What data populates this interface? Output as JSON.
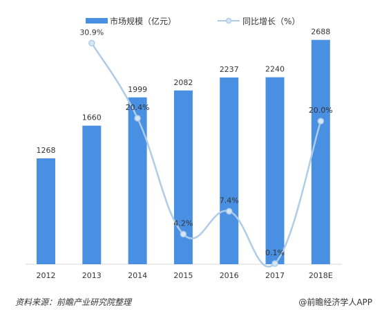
{
  "colors": {
    "bar": "#4a90e2",
    "line": "#aecbe8",
    "text": "#333333",
    "axis": "#d9d9d9"
  },
  "legend": {
    "bar_label": "市场规模（亿元）",
    "line_label": "同比增长（%）"
  },
  "footer": {
    "source": "资料来源：前瞻产业研究院整理",
    "credit": "@前瞻经济学人APP"
  },
  "chart_data": {
    "type": "bar",
    "categories": [
      "2012",
      "2013",
      "2014",
      "2015",
      "2016",
      "2017",
      "2018E"
    ],
    "series": [
      {
        "name": "市场规模（亿元）",
        "type": "bar",
        "values": [
          1268,
          1660,
          1999,
          2082,
          2237,
          2240,
          2688
        ],
        "labels": [
          "1268",
          "1660",
          "1999",
          "2082",
          "2237",
          "2240",
          "2688"
        ]
      },
      {
        "name": "同比增长（%）",
        "type": "line",
        "values": [
          null,
          30.9,
          20.4,
          4.2,
          7.4,
          0.1,
          20.0
        ],
        "labels": [
          "",
          "30.9%",
          "20.4%",
          "4.2%",
          "7.4%",
          "0.1%",
          "20.0%"
        ]
      }
    ],
    "ylim": [
      0,
      3000
    ],
    "ylim_secondary": [
      0,
      35
    ],
    "legend_position": "top",
    "grid": false
  }
}
